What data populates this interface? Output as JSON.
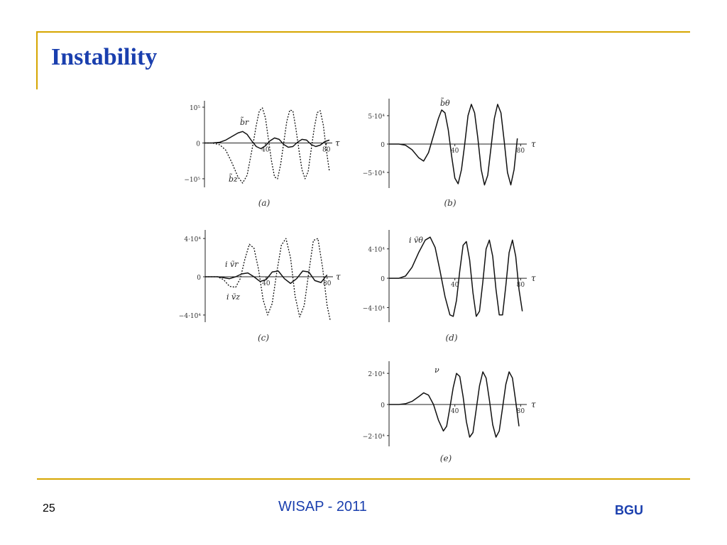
{
  "slide": {
    "title": "Instability",
    "page_number": "25",
    "footer_center": "WISAP - 2011",
    "footer_right": "BGU",
    "accent_color": "#d6a500",
    "title_color": "#1a3fae"
  },
  "chart_data": [
    {
      "id": "a",
      "type": "line",
      "caption": "(a)",
      "xlabel": "τ",
      "xlim": [
        0,
        82
      ],
      "ylim": [
        -120000,
        110000
      ],
      "x_ticks": [
        "40",
        "80"
      ],
      "y_ticks": [
        {
          "value": 100000,
          "label": "10⁵"
        },
        {
          "value": 0,
          "label": "0"
        },
        {
          "value": -100000,
          "label": "−10⁵"
        }
      ],
      "series": [
        {
          "name": "b̃r",
          "style": "solid",
          "x": [
            0,
            5,
            10,
            14,
            18,
            22,
            25,
            28,
            31,
            34,
            37,
            40,
            43,
            46,
            49,
            52,
            55,
            58,
            61,
            64,
            67,
            70,
            73,
            76,
            79,
            82
          ],
          "values": [
            0,
            0,
            2000,
            8000,
            18000,
            28000,
            32000,
            24000,
            6000,
            -10000,
            -16000,
            -8000,
            6000,
            14000,
            10000,
            -4000,
            -12000,
            -10000,
            2000,
            10000,
            8000,
            -4000,
            -10000,
            -6000,
            4000,
            8000
          ]
        },
        {
          "name": "b̃z",
          "style": "dotted",
          "x": [
            0,
            5,
            10,
            14,
            18,
            22,
            25,
            28,
            30,
            32,
            34,
            36,
            38,
            40,
            42,
            44,
            46,
            48,
            50,
            52,
            54,
            56,
            58,
            60,
            62,
            64,
            66,
            68,
            70,
            72,
            74,
            76,
            78,
            80,
            82
          ],
          "values": [
            0,
            0,
            -5000,
            -20000,
            -55000,
            -95000,
            -112000,
            -90000,
            -45000,
            0,
            50000,
            90000,
            98000,
            70000,
            10000,
            -50000,
            -95000,
            -100000,
            -60000,
            0,
            60000,
            92000,
            90000,
            40000,
            -20000,
            -75000,
            -100000,
            -80000,
            -20000,
            40000,
            85000,
            90000,
            50000,
            -20000,
            -80000
          ]
        }
      ]
    },
    {
      "id": "b",
      "type": "line",
      "caption": "(b)",
      "xlabel": "τ",
      "xlim": [
        0,
        82
      ],
      "ylim": [
        -75000,
        75000
      ],
      "x_ticks": [
        "40",
        "80"
      ],
      "y_ticks": [
        {
          "value": 50000,
          "label": "5·10⁴"
        },
        {
          "value": 0,
          "label": "0"
        },
        {
          "value": -50000,
          "label": "−5·10⁴"
        }
      ],
      "series": [
        {
          "name": "b̃θ",
          "style": "solid",
          "x": [
            0,
            6,
            10,
            14,
            18,
            21,
            24,
            27,
            30,
            32,
            34,
            36,
            38,
            40,
            42,
            44,
            46,
            48,
            50,
            52,
            54,
            56,
            58,
            60,
            62,
            64,
            66,
            68,
            70,
            72,
            74,
            76,
            78
          ],
          "values": [
            0,
            0,
            -2000,
            -10000,
            -24000,
            -30000,
            -15000,
            15000,
            45000,
            60000,
            55000,
            25000,
            -20000,
            -60000,
            -70000,
            -45000,
            0,
            50000,
            70000,
            55000,
            10000,
            -45000,
            -72000,
            -55000,
            -5000,
            45000,
            70000,
            55000,
            5000,
            -50000,
            -72000,
            -45000,
            10000
          ]
        }
      ]
    },
    {
      "id": "c",
      "type": "line",
      "caption": "(c)",
      "xlabel": "τ",
      "xlim": [
        0,
        82
      ],
      "ylim": [
        -46000,
        46000
      ],
      "x_ticks": [
        "40",
        "80"
      ],
      "y_ticks": [
        {
          "value": 40000,
          "label": "4·10⁴"
        },
        {
          "value": 0,
          "label": "0"
        },
        {
          "value": -40000,
          "label": "−4·10⁴"
        }
      ],
      "series": [
        {
          "name": "i ṽr",
          "style": "solid",
          "x": [
            0,
            8,
            12,
            16,
            20,
            24,
            28,
            32,
            36,
            40,
            44,
            48,
            52,
            56,
            60,
            64,
            68,
            72,
            76,
            80
          ],
          "values": [
            0,
            0,
            -1000,
            -2000,
            0,
            3000,
            4000,
            0,
            -5000,
            -3000,
            5000,
            6000,
            -2000,
            -7000,
            -2000,
            6000,
            5000,
            -4000,
            -6000,
            2000
          ]
        },
        {
          "name": "i ṽz",
          "style": "dotted",
          "x": [
            0,
            8,
            12,
            16,
            20,
            23,
            26,
            29,
            32,
            35,
            38,
            41,
            44,
            47,
            50,
            53,
            56,
            59,
            62,
            65,
            68,
            71,
            74,
            77,
            80,
            82
          ],
          "values": [
            0,
            0,
            -3000,
            -10000,
            -11000,
            -2000,
            18000,
            34000,
            30000,
            8000,
            -24000,
            -40000,
            -28000,
            5000,
            33000,
            40000,
            20000,
            -20000,
            -42000,
            -30000,
            5000,
            38000,
            40000,
            10000,
            -30000,
            -45000
          ]
        }
      ]
    },
    {
      "id": "d",
      "type": "line",
      "caption": "(d)",
      "xlabel": "τ",
      "xlim": [
        0,
        82
      ],
      "ylim": [
        -58000,
        62000
      ],
      "x_ticks": [
        "40",
        "80"
      ],
      "y_ticks": [
        {
          "value": 40000,
          "label": "4·10⁴"
        },
        {
          "value": 0,
          "label": "0"
        },
        {
          "value": -40000,
          "label": "−4·10⁴"
        }
      ],
      "series": [
        {
          "name": "i ṽθ",
          "style": "solid",
          "x": [
            0,
            6,
            10,
            14,
            18,
            22,
            25,
            28,
            31,
            34,
            37,
            39,
            41,
            43,
            45,
            47,
            49,
            51,
            53,
            55,
            57,
            59,
            61,
            63,
            65,
            67,
            69,
            71,
            73,
            75,
            77,
            79,
            81
          ],
          "values": [
            0,
            0,
            3000,
            15000,
            35000,
            52000,
            56000,
            42000,
            10000,
            -25000,
            -50000,
            -52000,
            -30000,
            10000,
            45000,
            50000,
            25000,
            -20000,
            -52000,
            -45000,
            -5000,
            40000,
            52000,
            30000,
            -15000,
            -50000,
            -50000,
            -10000,
            35000,
            52000,
            30000,
            -15000,
            -45000
          ]
        }
      ]
    },
    {
      "id": "e",
      "type": "line",
      "caption": "(e)",
      "xlabel": "τ",
      "xlim": [
        0,
        82
      ],
      "ylim": [
        -26000,
        26000
      ],
      "x_ticks": [
        "40",
        "80"
      ],
      "y_ticks": [
        {
          "value": 20000,
          "label": "2·10⁴"
        },
        {
          "value": 0,
          "label": "0"
        },
        {
          "value": -20000,
          "label": "−2·10⁴"
        }
      ],
      "series": [
        {
          "name": "ν",
          "style": "solid",
          "x": [
            0,
            6,
            10,
            14,
            18,
            21,
            24,
            27,
            30,
            33,
            35,
            37,
            39,
            41,
            43,
            45,
            47,
            49,
            51,
            53,
            55,
            57,
            59,
            61,
            63,
            65,
            67,
            69,
            71,
            73,
            75,
            77,
            79
          ],
          "values": [
            0,
            0,
            500,
            2000,
            5000,
            7500,
            6000,
            0,
            -10000,
            -17000,
            -14000,
            -2000,
            11000,
            20000,
            18000,
            5000,
            -11000,
            -21000,
            -18000,
            -3000,
            12000,
            21000,
            17000,
            3000,
            -13000,
            -21000,
            -17000,
            -2000,
            13000,
            21000,
            17000,
            2000,
            -14000
          ]
        }
      ]
    }
  ]
}
